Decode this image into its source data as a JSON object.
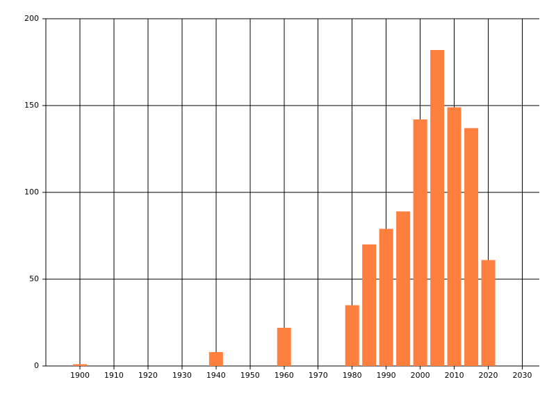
{
  "chart_data": {
    "type": "bar",
    "x": [
      1900,
      1940,
      1960,
      1980,
      1985,
      1990,
      1995,
      2000,
      2005,
      2010,
      2015,
      2020
    ],
    "values": [
      1,
      8,
      22,
      35,
      70,
      79,
      89,
      142,
      182,
      149,
      137,
      61
    ],
    "color": "#ff7f3f",
    "xlim": [
      1890,
      2035
    ],
    "xticks": [
      1900,
      1910,
      1920,
      1930,
      1940,
      1950,
      1960,
      1970,
      1980,
      1990,
      2000,
      2010,
      2020,
      2030
    ],
    "ylim": [
      0,
      200
    ],
    "yticks": [
      0,
      50,
      100,
      150,
      200
    ],
    "grid": true
  }
}
